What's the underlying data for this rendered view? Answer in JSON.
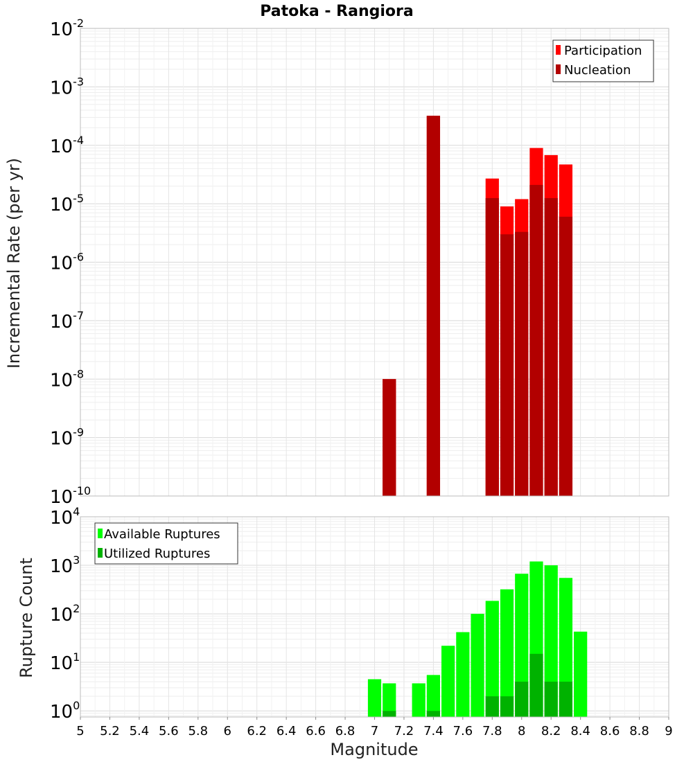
{
  "chart_data": [
    {
      "type": "bar",
      "title": "Patoka - Rangiora",
      "ylabel": "Incremental Rate (per yr)",
      "xlabel": "",
      "yscale": "log",
      "ylim": [
        1e-10,
        0.01
      ],
      "xlim": [
        5,
        9
      ],
      "bar_width": 0.1,
      "grid": true,
      "legend_position": "top-right",
      "colors": {
        "participation": "#ff0000",
        "nucleation": "#b20000"
      },
      "series": [
        {
          "name": "Participation",
          "x": [
            7.1,
            7.4,
            7.8,
            7.9,
            8.0,
            8.1,
            8.2,
            8.3
          ],
          "values": [
            1e-08,
            0.00032,
            2.7e-05,
            9e-06,
            1.2e-05,
            9e-05,
            6.8e-05,
            4.7e-05
          ]
        },
        {
          "name": "Nucleation",
          "x": [
            7.1,
            7.4,
            7.8,
            7.9,
            8.0,
            8.1,
            8.2,
            8.3
          ],
          "values": [
            1e-08,
            0.00032,
            1.25e-05,
            3e-06,
            3.3e-06,
            2.1e-05,
            1.25e-05,
            6e-06
          ]
        }
      ]
    },
    {
      "type": "bar",
      "title": "",
      "ylabel": "Rupture Count",
      "xlabel": "Magnitude",
      "yscale": "log",
      "ylim": [
        0.75,
        10000
      ],
      "xlim": [
        5,
        9
      ],
      "bar_width": 0.1,
      "grid": true,
      "legend_position": "top-left",
      "colors": {
        "available": "#00ff00",
        "utilized": "#00b200"
      },
      "series": [
        {
          "name": "Available Ruptures",
          "x": [
            7.0,
            7.1,
            7.3,
            7.4,
            7.5,
            7.6,
            7.7,
            7.8,
            7.9,
            8.0,
            8.1,
            8.2,
            8.3,
            8.4
          ],
          "values": [
            4.5,
            3.7,
            3.7,
            5.5,
            22,
            42,
            100,
            185,
            320,
            670,
            1200,
            1000,
            550,
            43
          ]
        },
        {
          "name": "Utilized Ruptures",
          "x": [
            7.1,
            7.4,
            7.8,
            7.9,
            8.0,
            8.1,
            8.2,
            8.3
          ],
          "values": [
            1,
            1,
            2,
            2,
            4,
            15,
            4,
            4
          ]
        }
      ]
    }
  ],
  "x_ticks": [
    "5",
    "5.2",
    "5.4",
    "5.6",
    "5.8",
    "6",
    "6.2",
    "6.4",
    "6.6",
    "6.8",
    "7",
    "7.2",
    "7.4",
    "7.6",
    "7.8",
    "8",
    "8.2",
    "8.4",
    "8.6",
    "8.8",
    "9"
  ],
  "top_y_ticks": [
    {
      "base": "10",
      "exp": "-10"
    },
    {
      "base": "10",
      "exp": "-9"
    },
    {
      "base": "10",
      "exp": "-8"
    },
    {
      "base": "10",
      "exp": "-7"
    },
    {
      "base": "10",
      "exp": "-6"
    },
    {
      "base": "10",
      "exp": "-5"
    },
    {
      "base": "10",
      "exp": "-4"
    },
    {
      "base": "10",
      "exp": "-3"
    },
    {
      "base": "10",
      "exp": "-2"
    }
  ],
  "bottom_y_ticks": [
    {
      "base": "10",
      "exp": "0"
    },
    {
      "base": "10",
      "exp": "1"
    },
    {
      "base": "10",
      "exp": "2"
    },
    {
      "base": "10",
      "exp": "3"
    },
    {
      "base": "10",
      "exp": "4"
    }
  ]
}
